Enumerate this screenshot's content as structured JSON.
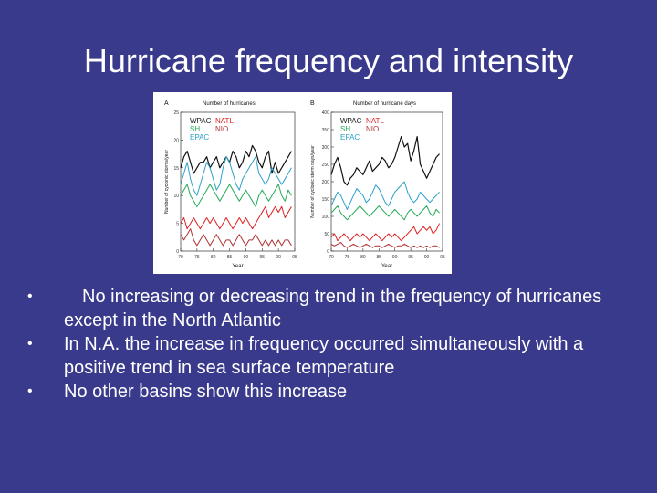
{
  "slide": {
    "title": "Hurricane frequency and intensity",
    "bullets": [
      "No increasing or decreasing trend in the frequency of hurricanes except in the North Atlantic",
      "In N.A. the increase in frequency occurred simultaneously with a positive trend in sea surface temperature",
      "No other basins show this increase"
    ],
    "bullet_glyph": "•"
  },
  "colors": {
    "background": "#3a3a8c",
    "WPAC": "#111111",
    "NATL": "#e02020",
    "SH": "#22aa55",
    "NIO": "#b03030",
    "EPAC": "#2aa0c8",
    "line_colors_note": [
      "#111111",
      "#2aa0c8",
      "#22aa55",
      "#e02020",
      "#b03030"
    ]
  },
  "chart_data": [
    {
      "type": "line",
      "panel": "A",
      "title": "Number of hurricanes",
      "xlabel": "Year",
      "ylabel": "Number of cyclonic storms/year",
      "x": [
        1970,
        1971,
        1972,
        1973,
        1974,
        1975,
        1976,
        1977,
        1978,
        1979,
        1980,
        1981,
        1982,
        1983,
        1984,
        1985,
        1986,
        1987,
        1988,
        1989,
        1990,
        1991,
        1992,
        1993,
        1994,
        1995,
        1996,
        1997,
        1998,
        1999,
        2000,
        2001,
        2002,
        2003,
        2004
      ],
      "xlim": [
        1970,
        2005
      ],
      "xticks": [
        "70",
        "75",
        "80",
        "85",
        "90",
        "95",
        "00",
        "05"
      ],
      "xtick_values": [
        1970,
        1975,
        1980,
        1985,
        1990,
        1995,
        2000,
        2005
      ],
      "ylim": [
        0,
        25
      ],
      "yticks": [
        "0",
        "5",
        "10",
        "15",
        "20",
        "25"
      ],
      "ytick_values": [
        0,
        5,
        10,
        15,
        20,
        25
      ],
      "legend": [
        "WPAC",
        "NATL",
        "SH",
        "NIO",
        "EPAC"
      ],
      "series": [
        {
          "name": "WPAC",
          "values": [
            15,
            17,
            18,
            16,
            14,
            15,
            16,
            16,
            17,
            15,
            16,
            17,
            15,
            16,
            17,
            16,
            18,
            17,
            15,
            16,
            18,
            17,
            19,
            18,
            16,
            15,
            17,
            18,
            14,
            16,
            14,
            15,
            16,
            17,
            18
          ]
        },
        {
          "name": "EPAC",
          "values": [
            12,
            14,
            16,
            13,
            11,
            10,
            12,
            14,
            16,
            15,
            13,
            11,
            12,
            15,
            17,
            16,
            14,
            12,
            11,
            13,
            14,
            15,
            16,
            17,
            14,
            13,
            12,
            13,
            15,
            14,
            13,
            12,
            13,
            14,
            15
          ]
        },
        {
          "name": "SH",
          "values": [
            10,
            11,
            12,
            10,
            9,
            8,
            9,
            10,
            11,
            12,
            11,
            10,
            9,
            10,
            11,
            12,
            11,
            10,
            9,
            10,
            11,
            10,
            9,
            8,
            10,
            11,
            10,
            9,
            10,
            11,
            12,
            10,
            9,
            11,
            10
          ]
        },
        {
          "name": "NATL",
          "values": [
            5,
            6,
            4,
            5,
            6,
            5,
            4,
            5,
            6,
            5,
            6,
            5,
            4,
            5,
            6,
            5,
            4,
            5,
            6,
            5,
            6,
            5,
            4,
            5,
            6,
            7,
            8,
            6,
            7,
            8,
            7,
            8,
            6,
            7,
            8
          ]
        },
        {
          "name": "NIO",
          "values": [
            3,
            2,
            3,
            4,
            2,
            1,
            2,
            3,
            2,
            1,
            2,
            3,
            2,
            1,
            2,
            2,
            1,
            2,
            3,
            2,
            1,
            2,
            2,
            3,
            2,
            1,
            2,
            1,
            2,
            1,
            2,
            1,
            2,
            2,
            1
          ]
        }
      ]
    },
    {
      "type": "line",
      "panel": "B",
      "title": "Number of hurricane days",
      "xlabel": "Year",
      "ylabel": "Number of cyclonic storm days/year",
      "x": [
        1970,
        1971,
        1972,
        1973,
        1974,
        1975,
        1976,
        1977,
        1978,
        1979,
        1980,
        1981,
        1982,
        1983,
        1984,
        1985,
        1986,
        1987,
        1988,
        1989,
        1990,
        1991,
        1992,
        1993,
        1994,
        1995,
        1996,
        1997,
        1998,
        1999,
        2000,
        2001,
        2002,
        2003,
        2004
      ],
      "xlim": [
        1970,
        2005
      ],
      "xticks": [
        "70",
        "75",
        "80",
        "85",
        "90",
        "95",
        "00",
        "05"
      ],
      "xtick_values": [
        1970,
        1975,
        1980,
        1985,
        1990,
        1995,
        2000,
        2005
      ],
      "ylim": [
        0,
        400
      ],
      "yticks": [
        "0",
        "50",
        "100",
        "150",
        "200",
        "250",
        "300",
        "350",
        "400"
      ],
      "ytick_values": [
        0,
        50,
        100,
        150,
        200,
        250,
        300,
        350,
        400
      ],
      "legend": [
        "WPAC",
        "NATL",
        "SH",
        "NIO",
        "EPAC"
      ],
      "series": [
        {
          "name": "WPAC",
          "values": [
            220,
            250,
            270,
            240,
            200,
            190,
            210,
            220,
            240,
            230,
            220,
            240,
            260,
            230,
            240,
            250,
            270,
            260,
            240,
            250,
            270,
            300,
            330,
            300,
            310,
            260,
            290,
            330,
            250,
            230,
            210,
            230,
            250,
            270,
            280
          ]
        },
        {
          "name": "EPAC",
          "values": [
            130,
            150,
            170,
            160,
            140,
            120,
            140,
            160,
            180,
            170,
            160,
            140,
            150,
            170,
            190,
            180,
            160,
            140,
            130,
            150,
            170,
            180,
            190,
            200,
            170,
            150,
            140,
            150,
            170,
            160,
            150,
            140,
            150,
            160,
            170
          ]
        },
        {
          "name": "SH",
          "values": [
            110,
            120,
            130,
            110,
            100,
            90,
            100,
            110,
            120,
            130,
            120,
            110,
            100,
            110,
            120,
            130,
            120,
            110,
            100,
            110,
            120,
            110,
            100,
            90,
            110,
            120,
            110,
            100,
            110,
            120,
            130,
            110,
            100,
            120,
            110
          ]
        },
        {
          "name": "NATL",
          "values": [
            40,
            50,
            30,
            40,
            50,
            40,
            30,
            40,
            50,
            40,
            50,
            40,
            30,
            40,
            50,
            40,
            30,
            40,
            50,
            40,
            50,
            40,
            30,
            40,
            50,
            60,
            70,
            50,
            60,
            70,
            60,
            70,
            50,
            60,
            80
          ]
        },
        {
          "name": "NIO",
          "values": [
            20,
            15,
            20,
            25,
            15,
            10,
            15,
            20,
            15,
            10,
            15,
            20,
            15,
            10,
            15,
            15,
            10,
            15,
            20,
            15,
            10,
            15,
            15,
            20,
            15,
            10,
            15,
            10,
            15,
            10,
            15,
            10,
            15,
            15,
            10
          ]
        }
      ]
    }
  ]
}
